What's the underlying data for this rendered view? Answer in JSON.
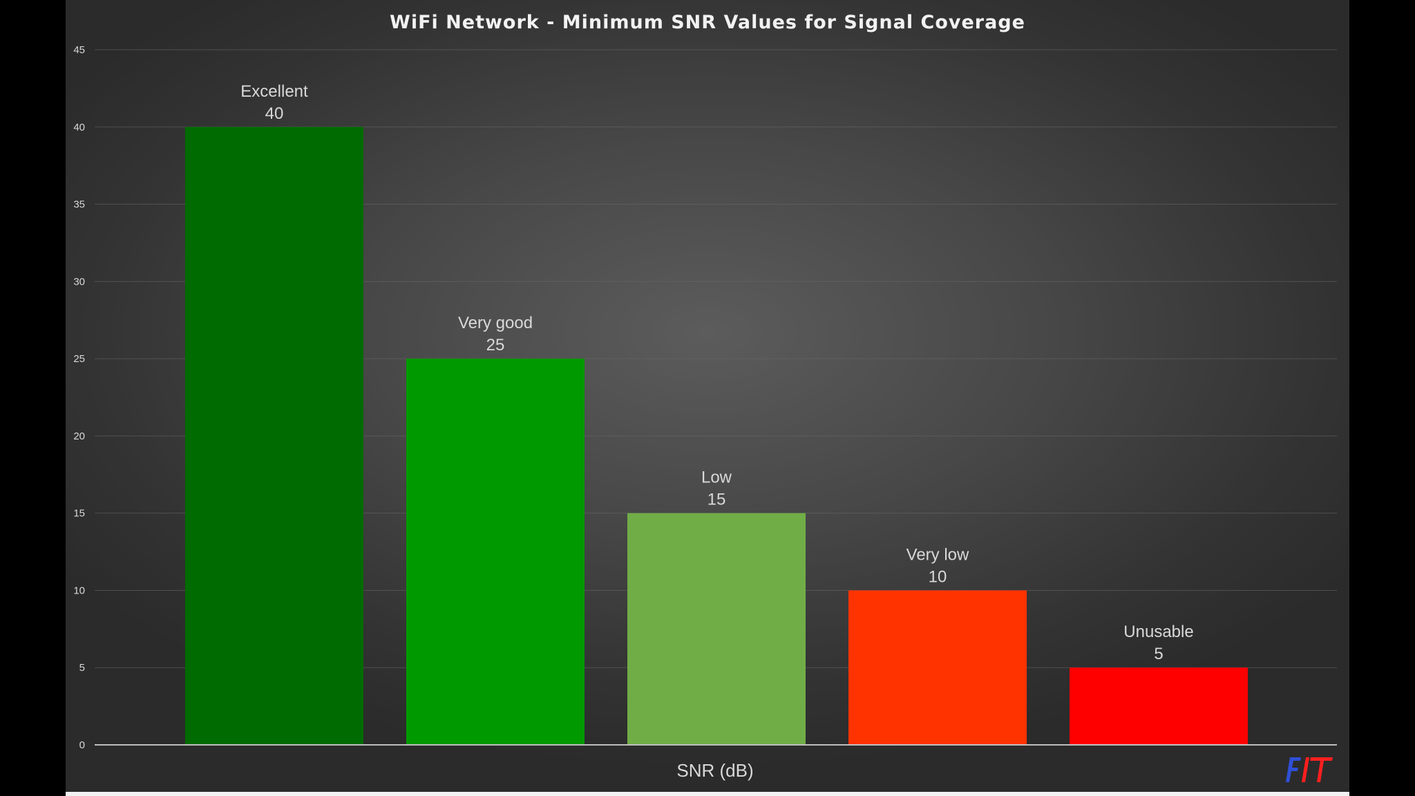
{
  "chart_data": {
    "type": "bar",
    "title": "WiFi Network  -  Minimum  SNR  Values  for  Signal  Coverage",
    "xlabel": "SNR (dB)",
    "ylabel": "",
    "ylim": [
      0,
      45
    ],
    "yticks": [
      0,
      5,
      10,
      15,
      20,
      25,
      30,
      35,
      40,
      45
    ],
    "grid": true,
    "legend": "none",
    "categories": [
      "Excellent",
      "Very good",
      "Low",
      "Very low",
      "Unusable"
    ],
    "values": [
      40,
      25,
      15,
      10,
      5
    ],
    "colors": [
      "#006b00",
      "#009900",
      "#70ad47",
      "#ff3300",
      "#ff0000"
    ]
  },
  "logo": {
    "text": "FIT",
    "colors": [
      "#2f4fd6",
      "#ff1f1f"
    ]
  },
  "theme": {
    "background": "#474747",
    "text": "#d9d9d9"
  }
}
